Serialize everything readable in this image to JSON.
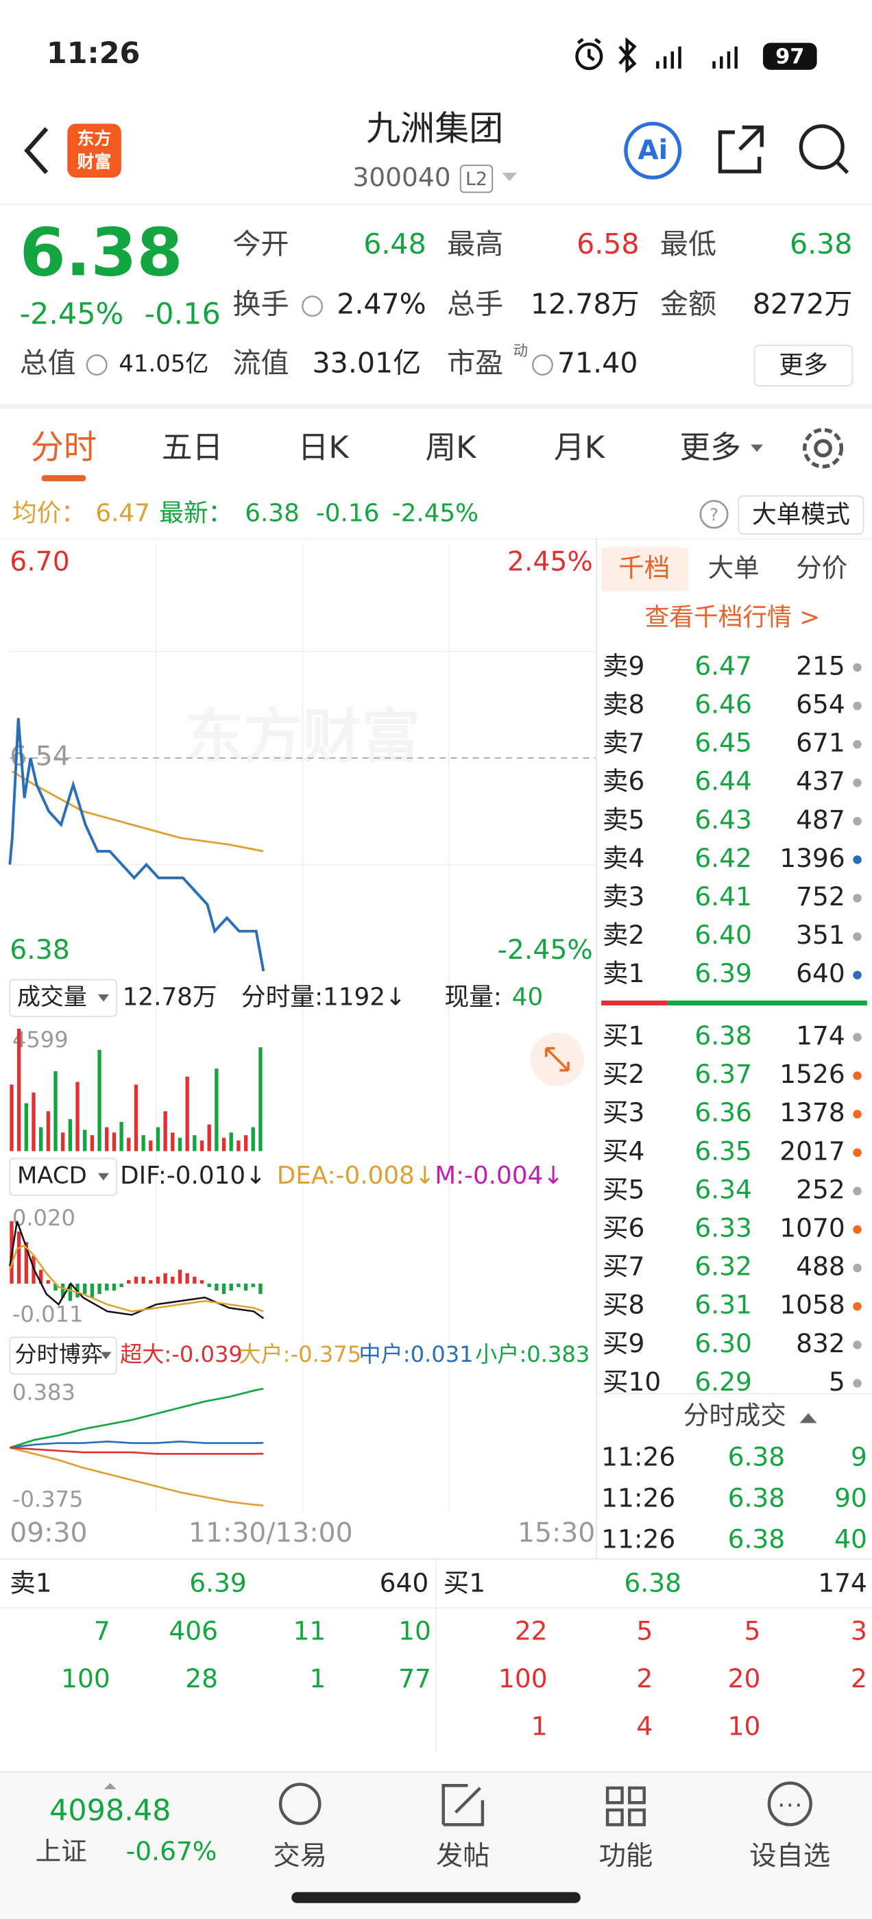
{
  "status": {
    "time": "11:26",
    "battery": "97"
  },
  "header": {
    "logo": [
      "东方",
      "财富"
    ],
    "name": "九洲集团",
    "code": "300040",
    "level": "L2",
    "ai": "Ai"
  },
  "quote": {
    "price": "6.38",
    "change_pct": "-2.45%",
    "change": "-0.16",
    "fields": [
      {
        "label": "今开",
        "value": "6.48",
        "color": "#13a53f"
      },
      {
        "label": "最高",
        "value": "6.58",
        "color": "#e03030"
      },
      {
        "label": "最低",
        "value": "6.38",
        "color": "#13a53f"
      },
      {
        "label": "换手",
        "value": "2.47%",
        "color": "#222"
      },
      {
        "label": "总手",
        "value": "12.78万",
        "color": "#222"
      },
      {
        "label": "金额",
        "value": "8272万",
        "color": "#222"
      },
      {
        "label": "总值",
        "value": "41.05亿",
        "color": "#222"
      },
      {
        "label": "流值",
        "value": "33.01亿",
        "color": "#222"
      },
      {
        "label": "市盈",
        "sup": "动",
        "value": "71.40",
        "color": "#222"
      }
    ],
    "more": "更多"
  },
  "tabs": [
    "分时",
    "五日",
    "日K",
    "周K",
    "月K",
    "更多"
  ],
  "info": {
    "avg_label": "均价：",
    "avg": "6.47",
    "latest_label": "最新：",
    "latest": "6.38",
    "change": "-0.16",
    "pct": "-2.45%",
    "mode": "大单模式"
  },
  "intraday": {
    "watermark": "东方财富",
    "xlim": [
      0,
      240
    ],
    "ylim": [
      6.38,
      6.7
    ],
    "yticks": [
      {
        "value": 6.7,
        "label": "6.70",
        "color": "#e03030"
      },
      {
        "value": 6.54,
        "label": "6.54",
        "color": "#999"
      },
      {
        "value": 6.38,
        "label": "6.38",
        "color": "#13a53f"
      }
    ],
    "pct_ticks": [
      {
        "value": 6.7,
        "label": "2.45%",
        "color": "#e03030"
      },
      {
        "value": 6.38,
        "label": "-2.45%",
        "color": "#13a53f"
      }
    ],
    "xticks": [
      {
        "value": 0,
        "label": "09:30"
      },
      {
        "value": 120,
        "label": "11:30/13:00"
      },
      {
        "value": 240,
        "label": "15:30"
      }
    ],
    "price": {
      "color": "#2a6db8",
      "x": [
        0,
        1,
        3.5,
        6,
        8.5,
        11,
        16,
        21,
        26,
        31,
        36,
        41,
        46,
        51,
        56,
        61,
        66,
        71,
        76,
        81,
        84,
        89,
        94,
        101,
        104
      ],
      "values": [
        6.46,
        6.48,
        6.57,
        6.51,
        6.54,
        6.52,
        6.5,
        6.49,
        6.52,
        6.49,
        6.47,
        6.47,
        6.46,
        6.45,
        6.46,
        6.45,
        6.45,
        6.45,
        6.44,
        6.43,
        6.41,
        6.42,
        6.41,
        6.41,
        6.38
      ]
    },
    "avg": {
      "color": "#e0a030",
      "x": [
        1,
        10,
        20,
        30,
        50,
        70,
        90,
        104
      ],
      "values": [
        6.53,
        6.52,
        6.51,
        6.5,
        6.49,
        6.48,
        6.475,
        6.47
      ]
    }
  },
  "volume": {
    "name": "成交量",
    "total": "12.78万",
    "per": "分时量:1192↓",
    "now_label": "现量:",
    "now": "40",
    "ylim": [
      0,
      4599
    ],
    "yticks": [
      4599
    ],
    "x": [
      0,
      3,
      6,
      9,
      12,
      15,
      18,
      21,
      24,
      27,
      30,
      33,
      36,
      39,
      42,
      45,
      48,
      51,
      54,
      57,
      60,
      63,
      66,
      69,
      72,
      75,
      78,
      81,
      84,
      87,
      90,
      93,
      96,
      99,
      102
    ],
    "values": [
      2500,
      4599,
      1800,
      2200,
      900,
      1500,
      3000,
      700,
      1200,
      2600,
      800,
      600,
      3800,
      900,
      700,
      1100,
      500,
      2500,
      600,
      400,
      900,
      1500,
      700,
      500,
      2800,
      600,
      400,
      1000,
      3100,
      500,
      700,
      400,
      600,
      900,
      3900
    ],
    "colors": [
      "#e03030",
      "#e03030",
      "#13a53f",
      "#e03030",
      "#13a53f",
      "#e03030",
      "#13a53f",
      "#e03030",
      "#13a53f",
      "#e03030",
      "#13a53f",
      "#e03030",
      "#13a53f",
      "#e03030",
      "#e03030",
      "#13a53f",
      "#e03030",
      "#e03030",
      "#13a53f",
      "#e03030",
      "#13a53f",
      "#e03030",
      "#e03030",
      "#13a53f",
      "#e03030",
      "#13a53f",
      "#e03030",
      "#e03030",
      "#13a53f",
      "#e03030",
      "#13a53f",
      "#e03030",
      "#e03030",
      "#13a53f",
      "#13a53f"
    ]
  },
  "macd": {
    "name": "MACD",
    "dif_text": "DIF:-0.010↓",
    "dea_text": "DEA:-0.008↓",
    "m_text": "M:-0.004↓",
    "ylim": [
      -0.013,
      0.023
    ],
    "yticks": [
      {
        "value": 0.02,
        "label": "0.020"
      },
      {
        "value": -0.011,
        "label": "-0.011"
      }
    ],
    "x": [
      0,
      3,
      6,
      9,
      12,
      15,
      18,
      21,
      24,
      27,
      30,
      33,
      36,
      39,
      42,
      45,
      48,
      51,
      54,
      57,
      60,
      63,
      66,
      69,
      72,
      75,
      78,
      81,
      84,
      87,
      90,
      93,
      96,
      99,
      102
    ],
    "hist": [
      0.018,
      0.015,
      0.012,
      0.008,
      0.004,
      0.001,
      -0.002,
      -0.004,
      -0.005,
      -0.004,
      -0.003,
      -0.004,
      -0.003,
      -0.002,
      -0.002,
      -0.001,
      0.001,
      0.002,
      0.002,
      0.001,
      0.002,
      0.003,
      0.002,
      0.004,
      0.003,
      0.002,
      0.001,
      -0.001,
      -0.002,
      -0.003,
      -0.002,
      -0.001,
      -0.002,
      -0.001,
      -0.003
    ],
    "dif": {
      "color": "#111",
      "x": [
        0,
        3,
        6,
        10,
        15,
        20,
        25,
        30,
        40,
        50,
        60,
        70,
        80,
        90,
        100,
        104
      ],
      "values": [
        0.005,
        0.018,
        0.012,
        0.004,
        -0.003,
        -0.006,
        0.0,
        -0.004,
        -0.008,
        -0.009,
        -0.006,
        -0.005,
        -0.004,
        -0.007,
        -0.008,
        -0.01
      ]
    },
    "dea": {
      "color": "#e0a030",
      "x": [
        0,
        3,
        6,
        10,
        15,
        20,
        25,
        30,
        40,
        50,
        60,
        70,
        80,
        90,
        100,
        104
      ],
      "values": [
        0.004,
        0.01,
        0.011,
        0.008,
        0.003,
        -0.001,
        -0.002,
        -0.003,
        -0.006,
        -0.008,
        -0.007,
        -0.006,
        -0.005,
        -0.006,
        -0.007,
        -0.008
      ]
    }
  },
  "game": {
    "name": "分时博弈",
    "texts": [
      {
        "text": "超大:-0.039",
        "color": "#e03030"
      },
      {
        "text": "大户:-0.375",
        "color": "#e0a030"
      },
      {
        "text": "中户:0.031",
        "color": "#2a6db8"
      },
      {
        "text": "小户:0.383",
        "color": "#13a53f"
      }
    ],
    "ylim": [
      -0.42,
      0.43
    ],
    "yticks": [
      {
        "value": 0.383,
        "label": "0.383"
      },
      {
        "value": -0.375,
        "label": "-0.375"
      }
    ],
    "lines": [
      {
        "color": "#13a53f",
        "x": [
          0,
          10,
          20,
          30,
          40,
          50,
          60,
          70,
          80,
          90,
          100,
          104
        ],
        "values": [
          0,
          0.05,
          0.08,
          0.12,
          0.15,
          0.18,
          0.22,
          0.26,
          0.3,
          0.33,
          0.37,
          0.383
        ]
      },
      {
        "color": "#e0a030",
        "x": [
          0,
          10,
          20,
          30,
          40,
          50,
          60,
          70,
          80,
          90,
          100,
          104
        ],
        "values": [
          0,
          -0.04,
          -0.08,
          -0.13,
          -0.17,
          -0.21,
          -0.25,
          -0.29,
          -0.32,
          -0.35,
          -0.37,
          -0.375
        ]
      },
      {
        "color": "#2a6db8",
        "x": [
          0,
          10,
          20,
          30,
          40,
          50,
          60,
          70,
          80,
          90,
          100,
          104
        ],
        "values": [
          0,
          0.02,
          0.03,
          0.03,
          0.04,
          0.03,
          0.03,
          0.04,
          0.03,
          0.03,
          0.03,
          0.031
        ]
      },
      {
        "color": "#e03030",
        "x": [
          0,
          10,
          20,
          30,
          40,
          50,
          60,
          70,
          80,
          90,
          100,
          104
        ],
        "values": [
          0,
          -0.01,
          -0.02,
          -0.03,
          -0.03,
          -0.03,
          -0.04,
          -0.04,
          -0.04,
          -0.04,
          -0.04,
          -0.039
        ]
      }
    ]
  },
  "depth": {
    "tabs": [
      "千档",
      "大单",
      "分价"
    ],
    "link": "查看千档行情 >",
    "asks": [
      {
        "label": "卖9",
        "price": "6.47",
        "vol": "215",
        "dot": "#aaa"
      },
      {
        "label": "卖8",
        "price": "6.46",
        "vol": "654",
        "dot": "#aaa"
      },
      {
        "label": "卖7",
        "price": "6.45",
        "vol": "671",
        "dot": "#aaa"
      },
      {
        "label": "卖6",
        "price": "6.44",
        "vol": "437",
        "dot": "#aaa"
      },
      {
        "label": "卖5",
        "price": "6.43",
        "vol": "487",
        "dot": "#aaa"
      },
      {
        "label": "卖4",
        "price": "6.42",
        "vol": "1396",
        "dot": "#2a6db8"
      },
      {
        "label": "卖3",
        "price": "6.41",
        "vol": "752",
        "dot": "#aaa"
      },
      {
        "label": "卖2",
        "price": "6.40",
        "vol": "351",
        "dot": "#aaa"
      },
      {
        "label": "卖1",
        "price": "6.39",
        "vol": "640",
        "dot": "#2a6db8"
      }
    ],
    "bids": [
      {
        "label": "买1",
        "price": "6.38",
        "vol": "174",
        "dot": "#aaa"
      },
      {
        "label": "买2",
        "price": "6.37",
        "vol": "1526",
        "dot": "#f06a1e"
      },
      {
        "label": "买3",
        "price": "6.36",
        "vol": "1378",
        "dot": "#f06a1e"
      },
      {
        "label": "买4",
        "price": "6.35",
        "vol": "2017",
        "dot": "#f06a1e"
      },
      {
        "label": "买5",
        "price": "6.34",
        "vol": "252",
        "dot": "#aaa"
      },
      {
        "label": "买6",
        "price": "6.33",
        "vol": "1070",
        "dot": "#f06a1e"
      },
      {
        "label": "买7",
        "price": "6.32",
        "vol": "488",
        "dot": "#aaa"
      },
      {
        "label": "买8",
        "price": "6.31",
        "vol": "1058",
        "dot": "#f06a1e"
      },
      {
        "label": "买9",
        "price": "6.30",
        "vol": "832",
        "dot": "#aaa"
      },
      {
        "label": "买10",
        "price": "6.29",
        "vol": "5",
        "dot": "#aaa"
      }
    ],
    "trades_title": "分时成交",
    "trades": [
      {
        "time": "11:26",
        "price": "6.38",
        "vol": "9"
      },
      {
        "time": "11:26",
        "price": "6.38",
        "vol": "90"
      },
      {
        "time": "11:26",
        "price": "6.38",
        "vol": "40"
      }
    ]
  },
  "book": {
    "ask": {
      "label": "卖1",
      "price": "6.39",
      "vol": "640",
      "orders": [
        [
          "7",
          "406",
          "11",
          "10"
        ],
        [
          "100",
          "28",
          "1",
          "77"
        ]
      ]
    },
    "bid": {
      "label": "买1",
      "price": "6.38",
      "vol": "174",
      "orders": [
        [
          "22",
          "5",
          "5",
          "3"
        ],
        [
          "100",
          "2",
          "20",
          "2"
        ],
        [
          "1",
          "4",
          "10"
        ]
      ]
    }
  },
  "nav": {
    "index_value": "4098.48",
    "index_name": "上证",
    "index_change": "-0.67%",
    "items": [
      "交易",
      "发帖",
      "功能",
      "设自选"
    ]
  }
}
